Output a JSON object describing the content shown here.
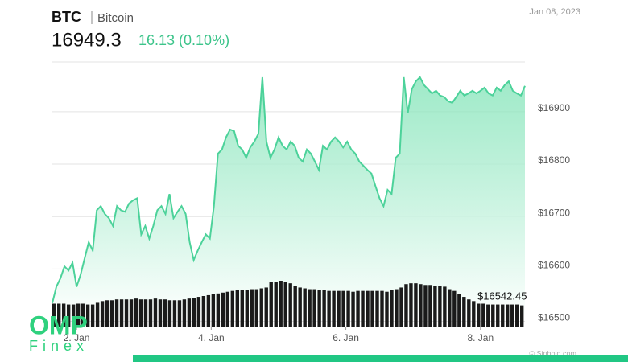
{
  "chart_data": {
    "type": "area",
    "title": "BTC",
    "subtitle": "Bitcoin",
    "price": 16949.3,
    "change": "16.13 (0.10%)",
    "date": "Jan 08, 2023",
    "annotation": "$16542.45",
    "logo": "OMP",
    "logo_sub": "Finex",
    "credit": "© Sinhold.com",
    "color": "#4cd29a",
    "x": [
      1.64,
      1.7,
      1.76,
      1.82,
      1.88,
      1.94,
      2.0,
      2.06,
      2.12,
      2.18,
      2.24,
      2.3,
      2.36,
      2.42,
      2.48,
      2.54,
      2.6,
      2.66,
      2.72,
      2.78,
      2.84,
      2.9,
      2.96,
      3.02,
      3.08,
      3.14,
      3.2,
      3.26,
      3.32,
      3.38,
      3.44,
      3.5,
      3.56,
      3.62,
      3.68,
      3.74,
      3.8,
      3.86,
      3.92,
      3.98,
      4.04,
      4.1,
      4.16,
      4.22,
      4.28,
      4.34,
      4.4,
      4.46,
      4.52,
      4.58,
      4.64,
      4.7,
      4.76,
      4.82,
      4.88,
      4.94,
      5.0,
      5.06,
      5.12,
      5.18,
      5.24,
      5.3,
      5.36,
      5.42,
      5.48,
      5.54,
      5.6,
      5.66,
      5.72,
      5.78,
      5.84,
      5.9,
      5.96,
      6.02,
      6.08,
      6.14,
      6.2,
      6.26,
      6.32,
      6.38,
      6.44,
      6.5,
      6.56,
      6.62,
      6.68,
      6.74,
      6.8,
      6.86,
      6.92,
      6.98,
      7.04,
      7.1,
      7.16,
      7.22,
      7.28,
      7.34,
      7.4,
      7.46,
      7.52,
      7.58,
      7.64,
      7.7,
      7.76,
      7.82,
      7.88,
      7.94,
      8.0,
      8.06,
      8.12,
      8.18,
      8.24,
      8.3,
      8.36,
      8.42,
      8.48,
      8.54,
      8.6,
      8.66
    ],
    "values": [
      16535,
      16566,
      16582,
      16605,
      16597,
      16612,
      16566,
      16589,
      16620,
      16651,
      16635,
      16712,
      16720,
      16705,
      16697,
      16682,
      16720,
      16712,
      16709,
      16725,
      16731,
      16735,
      16666,
      16682,
      16658,
      16682,
      16712,
      16720,
      16705,
      16743,
      16697,
      16709,
      16720,
      16705,
      16651,
      16617,
      16635,
      16651,
      16666,
      16658,
      16720,
      16820,
      16828,
      16851,
      16866,
      16863,
      16835,
      16828,
      16812,
      16832,
      16843,
      16858,
      16966,
      16843,
      16812,
      16828,
      16851,
      16835,
      16828,
      16843,
      16835,
      16812,
      16805,
      16828,
      16820,
      16805,
      16789,
      16835,
      16828,
      16843,
      16851,
      16843,
      16832,
      16843,
      16828,
      16820,
      16805,
      16797,
      16789,
      16782,
      16758,
      16735,
      16720,
      16751,
      16743,
      16812,
      16820,
      16966,
      16897,
      16943,
      16958,
      16966,
      16951,
      16943,
      16935,
      16940,
      16931,
      16928,
      16920,
      16917,
      16928,
      16940,
      16931,
      16935,
      16940,
      16935,
      16940,
      16946,
      16935,
      16931,
      16946,
      16940,
      16951,
      16958,
      16940,
      16935,
      16931,
      16949.3
    ],
    "volume": {
      "color": "#1a1a1a",
      "values": [
        27,
        27,
        27,
        26,
        26,
        27,
        27,
        26,
        26,
        28,
        30,
        31,
        31,
        32,
        32,
        32,
        32,
        33,
        32,
        32,
        32,
        33,
        32,
        32,
        31,
        31,
        31,
        32,
        33,
        34,
        35,
        36,
        37,
        38,
        39,
        40,
        41,
        42,
        43,
        43,
        43,
        44,
        44,
        45,
        46,
        53,
        53,
        54,
        53,
        51,
        48,
        46,
        45,
        44,
        44,
        43,
        43,
        42,
        42,
        42,
        42,
        42,
        41,
        42,
        42,
        42,
        42,
        42,
        42,
        41,
        43,
        44,
        46,
        50,
        51,
        51,
        50,
        49,
        49,
        48,
        48,
        47,
        44,
        42,
        38,
        35,
        32,
        30,
        27,
        27,
        26,
        26,
        26,
        26,
        26,
        26,
        26,
        25
      ]
    },
    "xlim": [
      1.64,
      8.66
    ],
    "xticks": [
      {
        "value": 2,
        "label": "2. Jan"
      },
      {
        "value": 4,
        "label": "4. Jan"
      },
      {
        "value": 6,
        "label": "6. Jan"
      },
      {
        "value": 8,
        "label": "8. Jan"
      }
    ],
    "ylim": [
      16490,
      16995
    ],
    "yticks": [
      {
        "value": 16500,
        "label": "$16500"
      },
      {
        "value": 16600,
        "label": "$16600"
      },
      {
        "value": 16700,
        "label": "$16700"
      },
      {
        "value": 16800,
        "label": "$16800"
      },
      {
        "value": 16900,
        "label": "$16900"
      }
    ],
    "grid": true
  }
}
